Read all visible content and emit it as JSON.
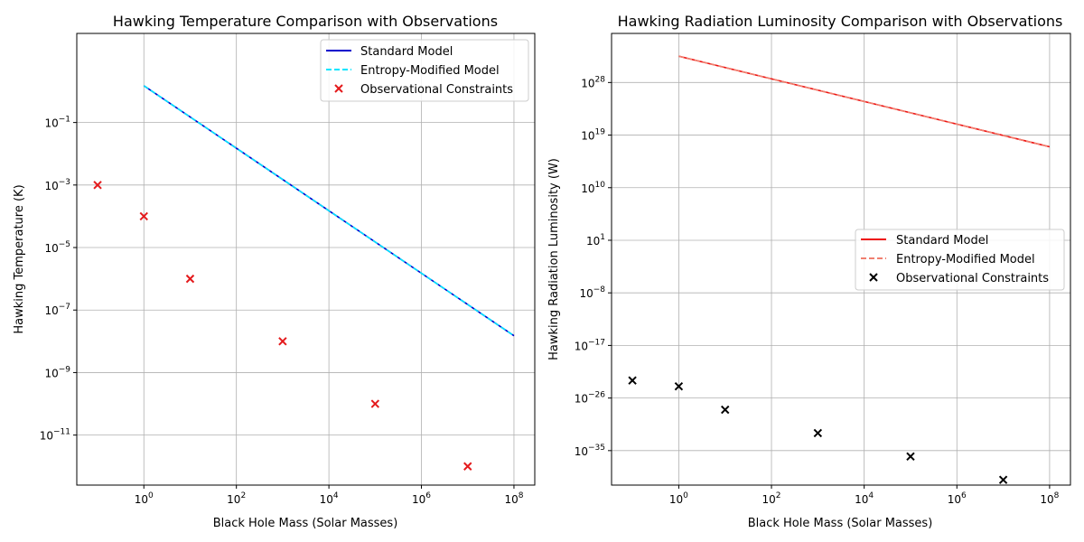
{
  "colors": {
    "standard_left": "#0000cc",
    "modified_left": "#00e5ff",
    "obs_left": "#e41a1c",
    "standard_right": "#ee1111",
    "modified_right": "#f08070",
    "obs_right": "#000000",
    "grid": "#b0b0b0"
  },
  "chart_data": [
    {
      "type": "line",
      "title": "Hawking Temperature Comparison with Observations",
      "xlabel": "Black Hole Mass (Solar Masses)",
      "ylabel": "Hawking Temperature (K)",
      "xscale": "log",
      "yscale": "log",
      "xlim_log10": [
        -1.45,
        8.45
      ],
      "ylim_log10": [
        -12.6,
        1.85
      ],
      "xticks": [
        {
          "base": "10",
          "exp": "0",
          "log": 0
        },
        {
          "base": "10",
          "exp": "2",
          "log": 2
        },
        {
          "base": "10",
          "exp": "4",
          "log": 4
        },
        {
          "base": "10",
          "exp": "6",
          "log": 6
        },
        {
          "base": "10",
          "exp": "8",
          "log": 8
        }
      ],
      "yticks": [
        {
          "base": "10",
          "exp": "−1",
          "log": -1
        },
        {
          "base": "10",
          "exp": "−3",
          "log": -3
        },
        {
          "base": "10",
          "exp": "−5",
          "log": -5
        },
        {
          "base": "10",
          "exp": "−7",
          "log": -7
        },
        {
          "base": "10",
          "exp": "−9",
          "log": -9
        },
        {
          "base": "10",
          "exp": "−11",
          "log": -11
        }
      ],
      "grid": true,
      "legend_position": "upper right",
      "series": [
        {
          "name": "Standard Model",
          "kind": "line",
          "style": "solid",
          "color_key": "standard_left",
          "x": [
            1,
            100000000
          ],
          "y": [
            1.5,
            1.5e-08
          ]
        },
        {
          "name": "Entropy-Modified Model",
          "kind": "line",
          "style": "dashed",
          "color_key": "modified_left",
          "x": [
            1,
            100000000
          ],
          "y": [
            1.5,
            1.5e-08
          ]
        },
        {
          "name": "Observational Constraints",
          "kind": "scatter",
          "color_key": "obs_left",
          "x": [
            0.1,
            1,
            10,
            1000,
            100000,
            10000000
          ],
          "y": [
            0.001,
            0.0001,
            1e-06,
            1e-08,
            1e-10,
            1e-12
          ]
        }
      ]
    },
    {
      "type": "line",
      "title": "Hawking Radiation Luminosity Comparison with Observations",
      "xlabel": "Black Hole Mass (Solar Masses)",
      "ylabel": "Hawking Radiation Luminosity (W)",
      "xscale": "log",
      "yscale": "log",
      "xlim_log10": [
        -1.45,
        8.45
      ],
      "ylim_log10": [
        -40.9,
        36.4
      ],
      "xticks": [
        {
          "base": "10",
          "exp": "0",
          "log": 0
        },
        {
          "base": "10",
          "exp": "2",
          "log": 2
        },
        {
          "base": "10",
          "exp": "4",
          "log": 4
        },
        {
          "base": "10",
          "exp": "6",
          "log": 6
        },
        {
          "base": "10",
          "exp": "8",
          "log": 8
        }
      ],
      "yticks": [
        {
          "base": "10",
          "exp": "28",
          "log": 28
        },
        {
          "base": "10",
          "exp": "19",
          "log": 19
        },
        {
          "base": "10",
          "exp": "10",
          "log": 10
        },
        {
          "base": "10",
          "exp": "1",
          "log": 1
        },
        {
          "base": "10",
          "exp": "−8",
          "log": -8
        },
        {
          "base": "10",
          "exp": "−17",
          "log": -17
        },
        {
          "base": "10",
          "exp": "−26",
          "log": -26
        },
        {
          "base": "10",
          "exp": "−35",
          "log": -35
        }
      ],
      "grid": true,
      "legend_position": "center right",
      "series": [
        {
          "name": "Standard Model",
          "kind": "line",
          "style": "solid",
          "color_key": "standard_right",
          "x": [
            1,
            100000000
          ],
          "y": [
            3.2e+32,
            1e+17
          ]
        },
        {
          "name": "Entropy-Modified Model",
          "kind": "line",
          "style": "dashed",
          "color_key": "modified_right",
          "x": [
            1,
            100000000
          ],
          "y": [
            3.2e+32,
            1e+17
          ]
        },
        {
          "name": "Observational Constraints",
          "kind": "scatter",
          "color_key": "obs_right",
          "x": [
            0.1,
            1,
            10,
            1000,
            100000,
            10000000
          ],
          "y": [
            1e-23,
            1e-24,
            1e-28,
            1e-32,
            1e-36,
            1e-40
          ]
        }
      ]
    }
  ]
}
